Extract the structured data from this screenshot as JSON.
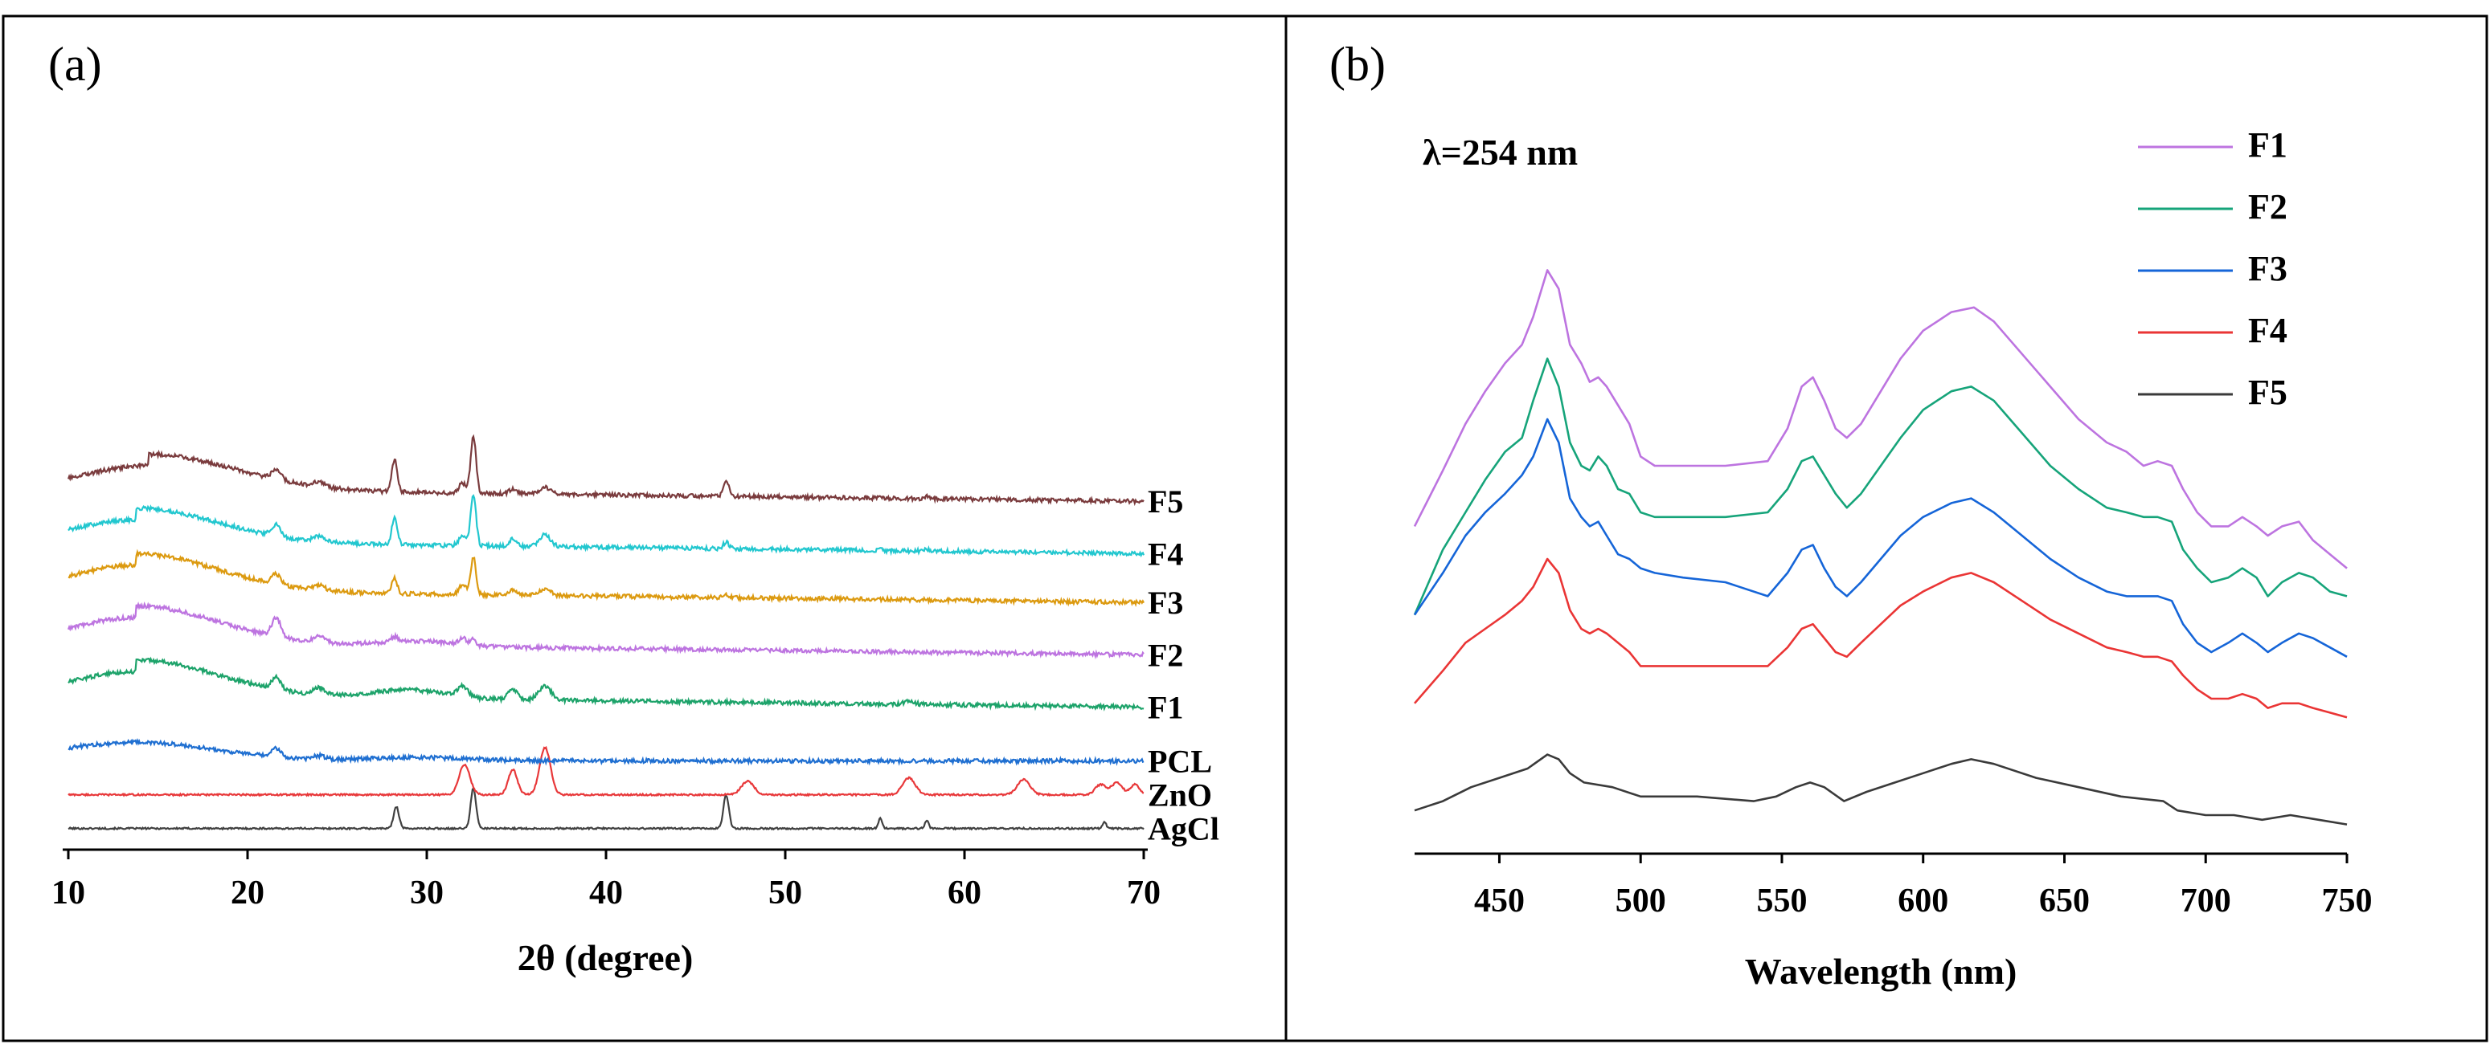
{
  "chart_data": [
    {
      "panel": "(a)",
      "type": "line",
      "xlabel": "2θ (degree)",
      "ylabel": "",
      "xlim": [
        10,
        70
      ],
      "xticks": [
        10,
        20,
        30,
        40,
        50,
        60,
        70
      ],
      "y_axis": "stacked offsets, arbitrary intensity units",
      "series": [
        {
          "name": "AgCl",
          "color": "#404040",
          "baseline": 0.2,
          "hump": null,
          "peaks": [
            [
              28.3,
              0.65,
              0.15
            ],
            [
              32.6,
              1.2,
              0.15
            ],
            [
              46.7,
              1.0,
              0.15
            ],
            [
              55.3,
              0.3,
              0.1
            ],
            [
              57.9,
              0.25,
              0.1
            ],
            [
              67.8,
              0.2,
              0.1
            ]
          ],
          "tail": 0.0
        },
        {
          "name": "ZnO",
          "color": "#e8383a",
          "baseline": 1.2,
          "hump": null,
          "peaks": [
            [
              32.1,
              0.9,
              0.3
            ],
            [
              34.8,
              0.75,
              0.25
            ],
            [
              36.6,
              1.4,
              0.3
            ],
            [
              47.9,
              0.4,
              0.35
            ],
            [
              56.9,
              0.5,
              0.35
            ],
            [
              63.3,
              0.45,
              0.35
            ],
            [
              67.6,
              0.3,
              0.3
            ],
            [
              68.5,
              0.35,
              0.3
            ],
            [
              69.5,
              0.3,
              0.25
            ]
          ],
          "tail": 0.0
        },
        {
          "name": "PCL",
          "color": "#1f6fd1",
          "baseline": 2.2,
          "hump": [
            13.8,
            0.55,
            4.5
          ],
          "peaks": [
            [
              21.6,
              0.25,
              0.25
            ],
            [
              24.0,
              0.1,
              0.3
            ],
            [
              29.5,
              0.1,
              3.0
            ]
          ],
          "tail": 0.0
        },
        {
          "name": "F1",
          "color": "#1da36a",
          "baseline": 3.8,
          "hump": [
            13.8,
            1.05,
            4.5
          ],
          "peaks": [
            [
              21.6,
              0.35,
              0.25
            ],
            [
              24.0,
              0.2,
              0.3
            ],
            [
              29.0,
              0.25,
              2.0
            ],
            [
              32.0,
              0.3,
              0.3
            ],
            [
              34.8,
              0.3,
              0.25
            ],
            [
              36.6,
              0.4,
              0.35
            ],
            [
              56.9,
              0.08,
              0.3
            ]
          ],
          "tail": 0.35
        },
        {
          "name": "F2",
          "color": "#bd74e0",
          "baseline": 5.35,
          "hump": [
            13.8,
            1.1,
            4.5
          ],
          "peaks": [
            [
              21.6,
              0.55,
              0.25
            ],
            [
              24.0,
              0.2,
              0.3
            ],
            [
              28.2,
              0.15,
              0.2
            ],
            [
              29.5,
              0.15,
              2.0
            ],
            [
              32.0,
              0.2,
              0.2
            ],
            [
              32.6,
              0.2,
              0.15
            ]
          ],
          "tail": 0.35
        },
        {
          "name": "F3",
          "color": "#dc9a10",
          "baseline": 6.9,
          "hump": [
            13.8,
            1.1,
            4.5
          ],
          "peaks": [
            [
              21.6,
              0.3,
              0.25
            ],
            [
              24.0,
              0.15,
              0.3
            ],
            [
              28.2,
              0.45,
              0.15
            ],
            [
              32.0,
              0.3,
              0.2
            ],
            [
              32.6,
              1.1,
              0.15
            ],
            [
              34.8,
              0.15,
              0.2
            ],
            [
              36.6,
              0.2,
              0.3
            ],
            [
              46.7,
              0.08,
              0.15
            ]
          ],
          "tail": 0.35
        },
        {
          "name": "F4",
          "color": "#22c7cf",
          "baseline": 8.35,
          "hump": [
            13.8,
            1.0,
            4.5
          ],
          "peaks": [
            [
              21.6,
              0.35,
              0.25
            ],
            [
              24.0,
              0.15,
              0.3
            ],
            [
              28.2,
              0.8,
              0.15
            ],
            [
              32.0,
              0.3,
              0.2
            ],
            [
              32.6,
              1.5,
              0.15
            ],
            [
              34.8,
              0.2,
              0.2
            ],
            [
              36.6,
              0.35,
              0.3
            ],
            [
              46.7,
              0.2,
              0.15
            ],
            [
              55.3,
              0.05,
              0.1
            ],
            [
              57.9,
              0.06,
              0.1
            ]
          ],
          "tail": 0.35
        },
        {
          "name": "F5",
          "color": "#7a3b3d",
          "baseline": 9.9,
          "hump": [
            14.5,
            1.05,
            4.8
          ],
          "peaks": [
            [
              21.6,
              0.3,
              0.25
            ],
            [
              24.0,
              0.15,
              0.3
            ],
            [
              28.2,
              0.95,
              0.15
            ],
            [
              32.0,
              0.3,
              0.2
            ],
            [
              32.6,
              1.7,
              0.15
            ],
            [
              34.8,
              0.15,
              0.2
            ],
            [
              36.6,
              0.2,
              0.3
            ],
            [
              46.7,
              0.45,
              0.15
            ],
            [
              55.3,
              0.05,
              0.1
            ],
            [
              57.9,
              0.06,
              0.1
            ]
          ],
          "tail": 0.35
        }
      ]
    },
    {
      "panel": "(b)",
      "type": "line",
      "xlabel": "Wavelength (nm)",
      "ylabel": "",
      "xlim": [
        420,
        750
      ],
      "xticks": [
        450,
        500,
        550,
        600,
        650,
        700,
        750
      ],
      "ylim": [
        0,
        100
      ],
      "annotation": "λ=254 nm",
      "legend_position": "top-right",
      "series": [
        {
          "name": "F1",
          "color": "#bd74e0",
          "scale": 1.0,
          "x": [
            420,
            430,
            438,
            445,
            452,
            458,
            462,
            467,
            471,
            475,
            479,
            482,
            485,
            488,
            492,
            496,
            500,
            505,
            515,
            530,
            545,
            552,
            557,
            561,
            565,
            569,
            573,
            578,
            585,
            592,
            600,
            610,
            618,
            625,
            635,
            645,
            655,
            665,
            672,
            678,
            683,
            688,
            692,
            697,
            702,
            708,
            713,
            718,
            722,
            727,
            733,
            738,
            744,
            750
          ],
          "y": [
            37,
            49,
            59,
            66,
            72,
            76,
            82,
            92,
            88,
            76,
            72,
            68,
            69,
            67,
            63,
            59,
            52,
            50,
            50,
            50,
            51,
            58,
            67,
            69,
            64,
            58,
            56,
            59,
            66,
            73,
            79,
            83,
            84,
            81,
            74,
            67,
            60,
            55,
            53,
            50,
            51,
            50,
            45,
            40,
            37,
            37,
            39,
            37,
            35,
            37,
            38,
            34,
            31,
            28
          ]
        },
        {
          "name": "F2",
          "color": "#16a47a",
          "scale": 1.0,
          "x": [
            420,
            430,
            438,
            445,
            452,
            458,
            462,
            467,
            471,
            475,
            479,
            482,
            485,
            488,
            492,
            496,
            500,
            505,
            515,
            530,
            545,
            552,
            557,
            561,
            565,
            569,
            573,
            578,
            585,
            592,
            600,
            610,
            617,
            625,
            635,
            645,
            655,
            665,
            672,
            678,
            683,
            688,
            692,
            697,
            702,
            708,
            713,
            718,
            722,
            727,
            733,
            738,
            744,
            750
          ],
          "y": [
            18,
            32,
            40,
            47,
            53,
            56,
            64,
            73,
            67,
            55,
            50,
            49,
            52,
            50,
            45,
            44,
            40,
            39,
            39,
            39,
            40,
            45,
            51,
            52,
            48,
            44,
            41,
            44,
            50,
            56,
            62,
            66,
            67,
            64,
            57,
            50,
            45,
            41,
            40,
            39,
            39,
            38,
            32,
            28,
            25,
            26,
            28,
            26,
            22,
            25,
            27,
            26,
            23,
            22
          ]
        },
        {
          "name": "F3",
          "color": "#1565d8",
          "scale": 1.0,
          "x": [
            420,
            430,
            438,
            445,
            452,
            458,
            462,
            467,
            471,
            475,
            479,
            482,
            485,
            488,
            492,
            496,
            500,
            505,
            515,
            530,
            545,
            552,
            557,
            561,
            565,
            569,
            573,
            578,
            585,
            592,
            600,
            610,
            617,
            625,
            635,
            645,
            655,
            665,
            672,
            678,
            683,
            688,
            692,
            697,
            702,
            708,
            713,
            718,
            722,
            727,
            733,
            738,
            744,
            750
          ],
          "y": [
            18,
            27,
            35,
            40,
            44,
            48,
            52,
            60,
            55,
            43,
            39,
            37,
            38,
            35,
            31,
            30,
            28,
            27,
            26,
            25,
            22,
            27,
            32,
            33,
            28,
            24,
            22,
            25,
            30,
            35,
            39,
            42,
            43,
            40,
            35,
            30,
            26,
            23,
            22,
            22,
            22,
            21,
            16,
            12,
            10,
            12,
            14,
            12,
            10,
            12,
            14,
            13,
            11,
            9
          ]
        },
        {
          "name": "F4",
          "color": "#ea3535",
          "scale": 1.0,
          "x": [
            420,
            430,
            438,
            445,
            452,
            458,
            462,
            467,
            471,
            475,
            479,
            482,
            485,
            488,
            492,
            496,
            500,
            505,
            515,
            530,
            545,
            552,
            557,
            561,
            565,
            569,
            573,
            578,
            585,
            592,
            600,
            610,
            617,
            625,
            635,
            645,
            655,
            665,
            672,
            678,
            683,
            688,
            692,
            697,
            702,
            708,
            713,
            718,
            722,
            727,
            733,
            738,
            744,
            750
          ],
          "y": [
            -1,
            6,
            12,
            15,
            18,
            21,
            24,
            30,
            27,
            19,
            15,
            14,
            15,
            14,
            12,
            10,
            7,
            7,
            7,
            7,
            7,
            11,
            15,
            16,
            13,
            10,
            9,
            12,
            16,
            20,
            23,
            26,
            27,
            25,
            21,
            17,
            14,
            11,
            10,
            9,
            9,
            8,
            5,
            2,
            0,
            0,
            1,
            0,
            -2,
            -1,
            -1,
            -2,
            -3,
            -4
          ]
        },
        {
          "name": "F5",
          "color": "#3a3a3a",
          "scale": 1.0,
          "x": [
            420,
            430,
            440,
            450,
            460,
            467,
            471,
            475,
            480,
            490,
            500,
            520,
            540,
            548,
            555,
            560,
            565,
            572,
            580,
            590,
            600,
            610,
            617,
            625,
            640,
            655,
            670,
            685,
            690,
            700,
            710,
            720,
            730,
            740,
            750
          ],
          "y": [
            -24,
            -22,
            -19,
            -17,
            -15,
            -12,
            -13,
            -16,
            -18,
            -19,
            -21,
            -21,
            -22,
            -21,
            -19,
            -18,
            -19,
            -22,
            -20,
            -18,
            -16,
            -14,
            -13,
            -14,
            -17,
            -19,
            -21,
            -22,
            -24,
            -25,
            -25,
            -26,
            -25,
            -26,
            -27
          ]
        }
      ]
    }
  ]
}
